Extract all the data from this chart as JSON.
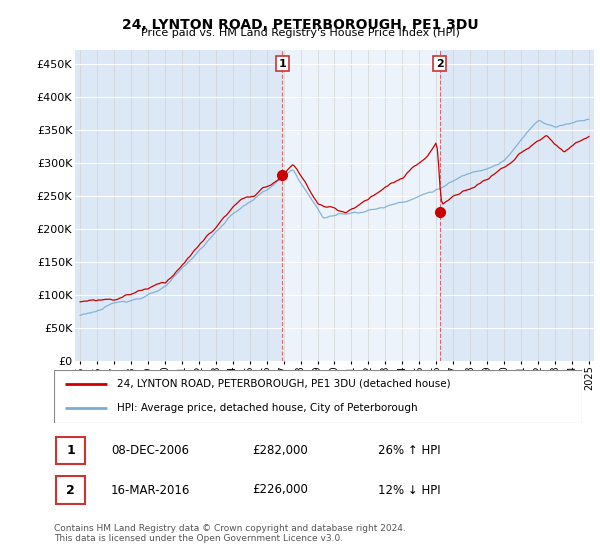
{
  "title": "24, LYNTON ROAD, PETERBOROUGH, PE1 3DU",
  "subtitle": "Price paid vs. HM Land Registry's House Price Index (HPI)",
  "ylabel_ticks": [
    "£0",
    "£50K",
    "£100K",
    "£150K",
    "£200K",
    "£250K",
    "£300K",
    "£350K",
    "£400K",
    "£450K"
  ],
  "ylabel_values": [
    0,
    50000,
    100000,
    150000,
    200000,
    250000,
    300000,
    350000,
    400000,
    450000
  ],
  "ylim": [
    0,
    470000
  ],
  "xlim_start": 1994.7,
  "xlim_end": 2025.3,
  "red_color": "#cc0000",
  "blue_color": "#7aadd4",
  "shade_color": "#dce8f5",
  "marker1_x": 2006.92,
  "marker1_y": 282000,
  "marker2_x": 2016.21,
  "marker2_y": 226000,
  "legend_line1": "24, LYNTON ROAD, PETERBOROUGH, PE1 3DU (detached house)",
  "legend_line2": "HPI: Average price, detached house, City of Peterborough",
  "table_row1": [
    "1",
    "08-DEC-2006",
    "£282,000",
    "26% ↑ HPI"
  ],
  "table_row2": [
    "2",
    "16-MAR-2016",
    "£226,000",
    "12% ↓ HPI"
  ],
  "footnote": "Contains HM Land Registry data © Crown copyright and database right 2024.\nThis data is licensed under the Open Government Licence v3.0.",
  "background_color": "#dce8f5",
  "plot_bg_color": "#ffffff"
}
